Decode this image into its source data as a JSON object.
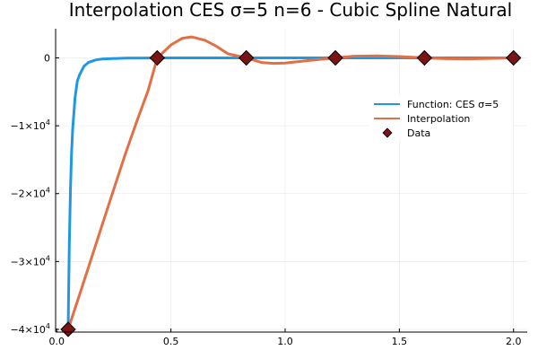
{
  "chart_data": {
    "type": "line",
    "title": "Interpolation CES σ=5 n=6 - Cubic Spline Natural",
    "xlabel": "",
    "ylabel": "",
    "xlim": [
      -0.005,
      2.06
    ],
    "ylim": [
      -40400,
      4300
    ],
    "grid": true,
    "legend_position": "right",
    "x_ticks": [
      {
        "value": 0.0,
        "label": "0.0"
      },
      {
        "value": 0.5,
        "label": "0.5"
      },
      {
        "value": 1.0,
        "label": "1.0"
      },
      {
        "value": 1.5,
        "label": "1.5"
      },
      {
        "value": 2.0,
        "label": "2.0"
      }
    ],
    "y_ticks": [
      {
        "value": 0,
        "base": "0",
        "exp": ""
      },
      {
        "value": -10000,
        "base": "−1×10",
        "exp": "4"
      },
      {
        "value": -20000,
        "base": "−2×10",
        "exp": "4"
      },
      {
        "value": -30000,
        "base": "−3×10",
        "exp": "4"
      },
      {
        "value": -40000,
        "base": "−4×10",
        "exp": "4"
      }
    ],
    "series": [
      {
        "name": "Function: CES σ=5",
        "type": "line",
        "color": "#1e98e3",
        "x": [
          0.05,
          0.055,
          0.06,
          0.065,
          0.07,
          0.08,
          0.09,
          0.1,
          0.12,
          0.14,
          0.17,
          0.2,
          0.3,
          0.5,
          1.0,
          1.5,
          2.0
        ],
        "y": [
          -40000,
          -27330,
          -19290,
          -14000,
          -10410,
          -5860,
          -3430,
          -2500,
          -1206,
          -651,
          -299,
          -156,
          -31,
          -4,
          -0.25,
          -0.05,
          -0.02
        ]
      },
      {
        "name": "Interpolation",
        "type": "line",
        "color": "#e26f46",
        "x": [
          0.05,
          0.1,
          0.15,
          0.2,
          0.25,
          0.3,
          0.35,
          0.4,
          0.44,
          0.5,
          0.55,
          0.59,
          0.65,
          0.7,
          0.75,
          0.83,
          0.9,
          0.95,
          1.0,
          1.1,
          1.22,
          1.3,
          1.4,
          1.5,
          1.61,
          1.7,
          1.8,
          1.9,
          2.0
        ],
        "y": [
          -40000,
          -34900,
          -29700,
          -24500,
          -19300,
          -14200,
          -9400,
          -4800,
          0,
          1900,
          2900,
          3100,
          2600,
          1700,
          600,
          0,
          -700,
          -800,
          -750,
          -400,
          0,
          250,
          300,
          200,
          0,
          -120,
          -140,
          -80,
          0
        ]
      },
      {
        "name": "Data",
        "type": "scatter",
        "color": "#7b1414",
        "x": [
          0.05,
          0.44,
          0.83,
          1.22,
          1.61,
          2.0
        ],
        "y": [
          -40000,
          0,
          0,
          0,
          0,
          0
        ]
      }
    ]
  }
}
